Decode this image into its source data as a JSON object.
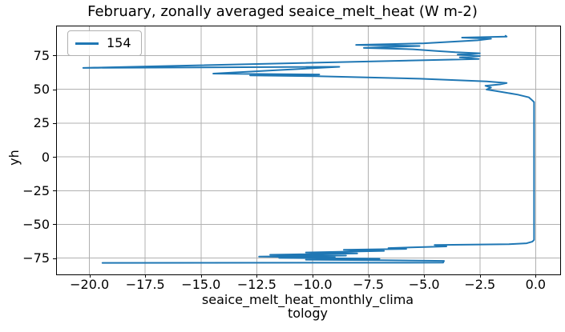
{
  "figure": {
    "title": "February, zonally averaged seaice_melt_heat (W m-2)",
    "ylabel": "yh",
    "xlabel_line1": "seaice_melt_heat_monthly_clima",
    "xlabel_line2": "tology"
  },
  "legend": {
    "position": "upper left",
    "entries": [
      {
        "label": "154",
        "color": "#1f77b4"
      }
    ]
  },
  "colors": {
    "line": "#1f77b4",
    "grid": "#b0b0b0",
    "spine": "#000000",
    "background": "#ffffff",
    "text": "#000000",
    "legend_border": "#b0b0b0"
  },
  "chart_data": {
    "type": "line",
    "title": "February, zonally averaged seaice_melt_heat (W m-2)",
    "xlabel": "seaice_melt_heat_monthly_climatology",
    "ylabel": "yh",
    "xlim": [
      -21.46,
      1.1
    ],
    "ylim": [
      -87.0,
      96.5
    ],
    "xticks": [
      -20.0,
      -17.5,
      -15.0,
      -12.5,
      -10.0,
      -7.5,
      -5.0,
      -2.5,
      0.0
    ],
    "yticks": [
      -75,
      -50,
      -25,
      0,
      25,
      50,
      75
    ],
    "grid": true,
    "legend_position": "upper left",
    "series": [
      {
        "name": "154",
        "color": "#1f77b4",
        "points": [
          [
            -1.35,
            89.6
          ],
          [
            -1.3,
            88.9
          ],
          [
            -3.3,
            88.2
          ],
          [
            -2.0,
            87.4
          ],
          [
            -2.6,
            86.2
          ],
          [
            -5.0,
            84.0
          ],
          [
            -8.05,
            82.8
          ],
          [
            -5.2,
            82.0
          ],
          [
            -7.7,
            80.6
          ],
          [
            -5.5,
            79.6
          ],
          [
            -4.5,
            78.4
          ],
          [
            -3.6,
            77.4
          ],
          [
            -2.5,
            76.6
          ],
          [
            -3.5,
            75.6
          ],
          [
            -2.5,
            74.6
          ],
          [
            -3.4,
            73.6
          ],
          [
            -2.55,
            72.4
          ],
          [
            -20.28,
            65.8
          ],
          [
            -8.8,
            66.6
          ],
          [
            -14.45,
            61.6
          ],
          [
            -9.7,
            60.9
          ],
          [
            -12.8,
            60.3
          ],
          [
            -9.8,
            59.6
          ],
          [
            -5.2,
            57.8
          ],
          [
            -2.2,
            55.8
          ],
          [
            -1.3,
            54.6
          ],
          [
            -1.6,
            53.6
          ],
          [
            -2.25,
            52.6
          ],
          [
            -2.0,
            51.2
          ],
          [
            -2.2,
            49.8
          ],
          [
            -1.75,
            48.6
          ],
          [
            -0.8,
            46.0
          ],
          [
            -0.3,
            44.0
          ],
          [
            -0.2,
            42.5
          ],
          [
            -0.07,
            40.5
          ],
          [
            -0.07,
            -61.5
          ],
          [
            -0.15,
            -62.8
          ],
          [
            -0.4,
            -64.0
          ],
          [
            -1.2,
            -64.6
          ],
          [
            -2.86,
            -64.9
          ],
          [
            -4.53,
            -65.3
          ],
          [
            -4.0,
            -66.3
          ],
          [
            -6.6,
            -67.5
          ],
          [
            -5.8,
            -68.1
          ],
          [
            -8.6,
            -68.8
          ],
          [
            -6.8,
            -69.6
          ],
          [
            -10.3,
            -70.8
          ],
          [
            -8.0,
            -71.5
          ],
          [
            -11.9,
            -72.5
          ],
          [
            -8.5,
            -73.1
          ],
          [
            -12.4,
            -73.8
          ],
          [
            -9.0,
            -74.3
          ],
          [
            -11.5,
            -74.8
          ],
          [
            -7.0,
            -75.4
          ],
          [
            -10.3,
            -76.1
          ],
          [
            -6.9,
            -76.5
          ],
          [
            -4.11,
            -77.0
          ],
          [
            -4.15,
            -78.3
          ],
          [
            -19.42,
            -78.45
          ]
        ]
      }
    ]
  }
}
